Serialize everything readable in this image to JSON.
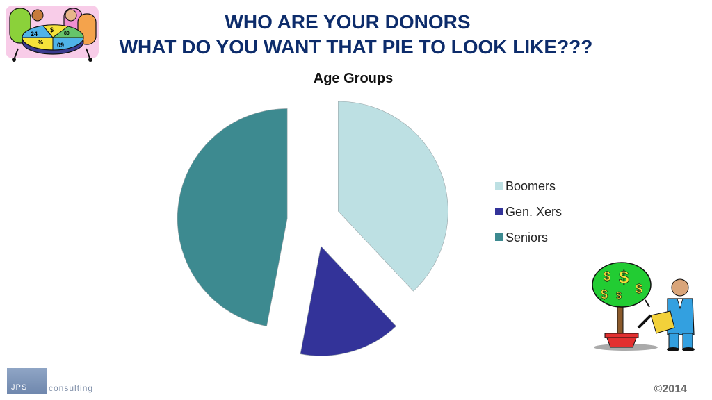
{
  "slide": {
    "title_line1": "WHO ARE YOUR DONORS",
    "title_line2": "WHAT DO YOU WANT THAT PIE TO LOOK LIKE???",
    "copyright": "©2014"
  },
  "logo": {
    "box_text": "JPS",
    "side_text": "consulting"
  },
  "clipart": {
    "top_left": "pie-chart-meeting-clipart",
    "top_left_slice_labels": [
      "24",
      "%",
      "09",
      "$",
      "80"
    ],
    "bottom_right": "money-tree-clipart"
  },
  "chart_data": {
    "type": "pie",
    "title": "Age Groups",
    "exploded": true,
    "legend_position": "right",
    "categories": [
      "Boomers",
      "Gen. Xers",
      "Seniors"
    ],
    "values": [
      38,
      15,
      47
    ],
    "colors": [
      "#bde0e3",
      "#333399",
      "#3d8a90"
    ]
  }
}
